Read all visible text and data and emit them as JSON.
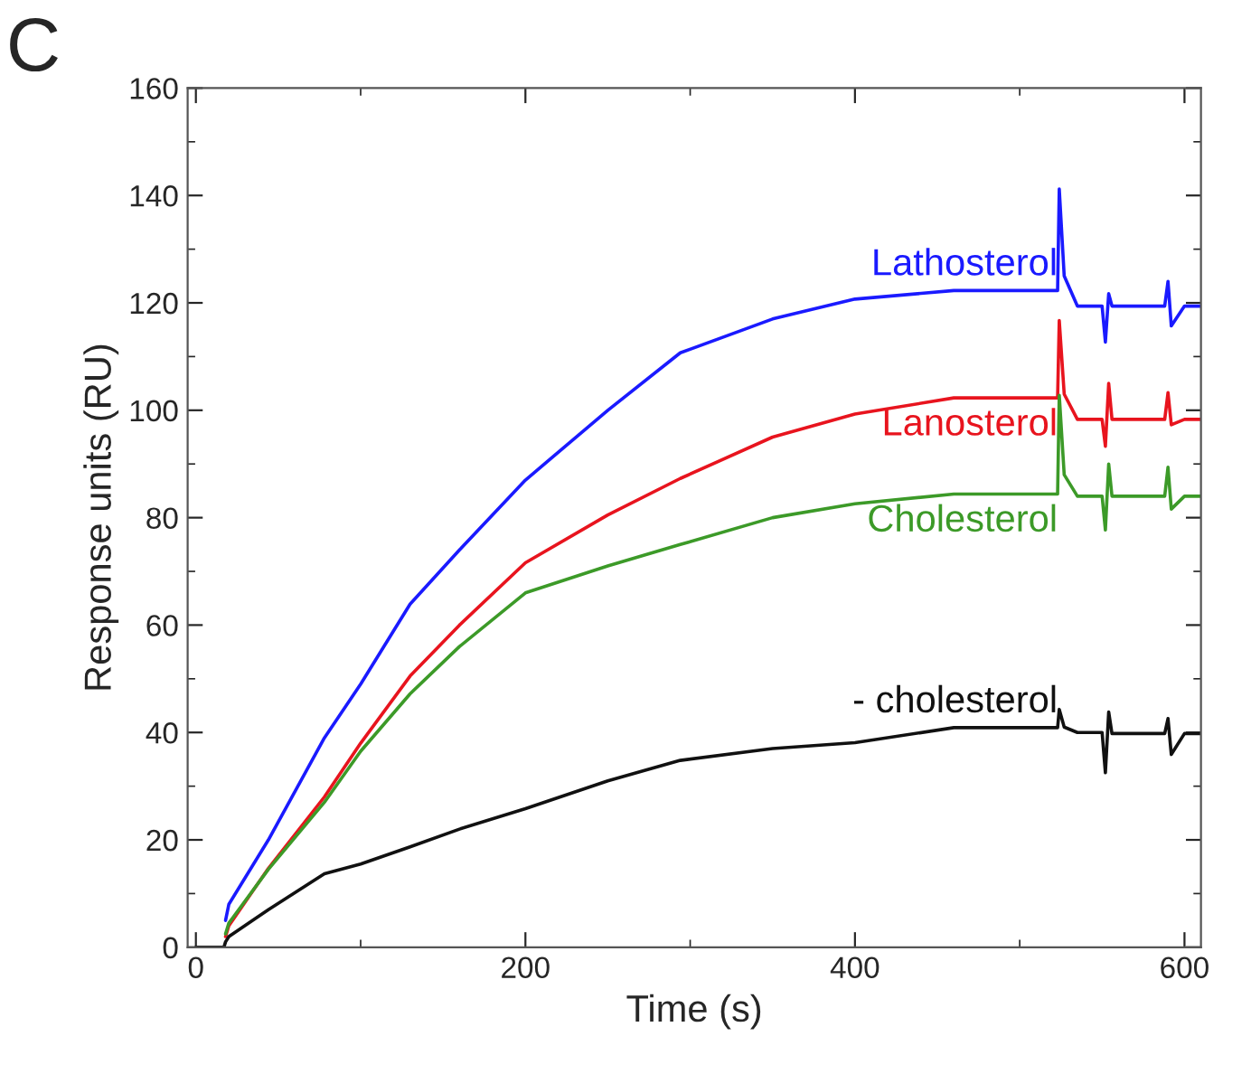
{
  "chart_data": {
    "type": "line",
    "xlabel": "Time (s)",
    "ylabel": "Response units (RU)",
    "annotations": [
      "C"
    ],
    "xlim": [
      -5,
      610
    ],
    "ylim": [
      0,
      160
    ],
    "xticks": [
      0,
      200,
      400,
      600
    ],
    "yticks": [
      0,
      20,
      40,
      60,
      80,
      100,
      120,
      140,
      160
    ],
    "grid": false,
    "legend": false,
    "marker": "none",
    "line_style": "solid",
    "series": [
      {
        "name": "Lathosterol",
        "color": "#1a1aff",
        "x": [
          18,
          20,
          44,
          78,
          100,
          130,
          160,
          200,
          250,
          294,
          350,
          400,
          460,
          523,
          524,
          527,
          535,
          550,
          552,
          554,
          556,
          588,
          590,
          592,
          600,
          610
        ],
        "values": [
          5,
          8,
          20,
          39,
          49,
          63.9,
          74,
          87,
          100,
          110.7,
          117,
          120.7,
          122.3,
          122.3,
          141.2,
          125,
          119.4,
          119.4,
          112.7,
          121.7,
          119.4,
          119.4,
          124,
          115.7,
          119.4,
          119.4
        ]
      },
      {
        "name": "Lanosterol",
        "color": "#e8141e",
        "x": [
          18,
          20,
          44,
          78,
          100,
          130,
          160,
          200,
          250,
          294,
          350,
          400,
          460,
          523,
          524,
          527,
          535,
          550,
          552,
          554,
          556,
          588,
          590,
          592,
          600,
          610
        ],
        "values": [
          2,
          4,
          14.7,
          28,
          38,
          50.5,
          60,
          71.6,
          80.5,
          87.3,
          95,
          99.3,
          102.3,
          102.3,
          116.7,
          103,
          98.3,
          98.3,
          93.3,
          105,
          98.3,
          98.3,
          103.3,
          97.3,
          98.3,
          98.3
        ]
      },
      {
        "name": "Cholesterol",
        "color": "#3c9a28",
        "x": [
          18,
          20,
          44,
          78,
          100,
          130,
          160,
          200,
          250,
          294,
          350,
          400,
          460,
          523,
          524,
          527,
          535,
          550,
          552,
          554,
          556,
          588,
          590,
          592,
          600,
          610
        ],
        "values": [
          2.5,
          4.5,
          14.5,
          27,
          36.5,
          47.2,
          56,
          66,
          71,
          75,
          80,
          82.6,
          84.4,
          84.4,
          102.8,
          88,
          84,
          84,
          77.7,
          90,
          84,
          84,
          89.4,
          81.6,
          84,
          84
        ]
      },
      {
        "name": "- cholesterol",
        "color": "#111111",
        "x": [
          0,
          17,
          18,
          20,
          44,
          78,
          100,
          130,
          160,
          200,
          250,
          294,
          350,
          400,
          460,
          523,
          524,
          527,
          535,
          550,
          552,
          554,
          556,
          588,
          590,
          592,
          600,
          610
        ],
        "values": [
          0,
          0,
          1,
          2,
          7,
          13.7,
          15.5,
          18.7,
          22,
          25.8,
          31,
          34.8,
          37,
          38.1,
          40.9,
          40.9,
          44.3,
          41,
          40,
          40,
          32.5,
          43.8,
          39.8,
          39.8,
          42.6,
          35.9,
          39.8,
          39.8
        ]
      }
    ]
  }
}
